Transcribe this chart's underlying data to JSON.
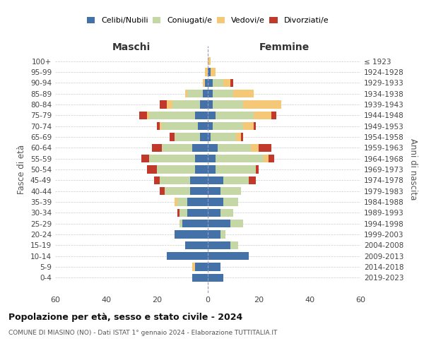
{
  "age_groups": [
    "0-4",
    "5-9",
    "10-14",
    "15-19",
    "20-24",
    "25-29",
    "30-34",
    "35-39",
    "40-44",
    "45-49",
    "50-54",
    "55-59",
    "60-64",
    "65-69",
    "70-74",
    "75-79",
    "80-84",
    "85-89",
    "90-94",
    "95-99",
    "100+"
  ],
  "birth_years": [
    "2019-2023",
    "2014-2018",
    "2009-2013",
    "2004-2008",
    "1999-2003",
    "1994-1998",
    "1989-1993",
    "1984-1988",
    "1979-1983",
    "1974-1978",
    "1969-1973",
    "1964-1968",
    "1959-1963",
    "1954-1958",
    "1949-1953",
    "1944-1948",
    "1939-1943",
    "1934-1938",
    "1929-1933",
    "1924-1928",
    "≤ 1923"
  ],
  "maschi": {
    "celibi": [
      6,
      5,
      16,
      9,
      13,
      10,
      8,
      8,
      7,
      7,
      5,
      5,
      6,
      3,
      4,
      5,
      3,
      2,
      1,
      0,
      0
    ],
    "coniugati": [
      0,
      0,
      0,
      0,
      0,
      1,
      3,
      4,
      10,
      12,
      15,
      18,
      12,
      10,
      14,
      18,
      11,
      6,
      0,
      0,
      0
    ],
    "vedovi": [
      0,
      1,
      0,
      0,
      0,
      0,
      0,
      1,
      0,
      0,
      0,
      0,
      0,
      0,
      1,
      1,
      2,
      1,
      1,
      1,
      0
    ],
    "divorziati": [
      0,
      0,
      0,
      0,
      0,
      0,
      1,
      0,
      2,
      2,
      4,
      3,
      4,
      2,
      1,
      3,
      3,
      0,
      0,
      0,
      0
    ]
  },
  "femmine": {
    "nubili": [
      6,
      5,
      16,
      9,
      5,
      9,
      5,
      6,
      5,
      6,
      3,
      3,
      4,
      1,
      2,
      3,
      2,
      2,
      2,
      1,
      0
    ],
    "coniugate": [
      0,
      0,
      0,
      3,
      2,
      5,
      5,
      6,
      8,
      10,
      16,
      19,
      13,
      10,
      12,
      15,
      12,
      8,
      4,
      0,
      0
    ],
    "vedove": [
      0,
      0,
      0,
      0,
      0,
      0,
      0,
      0,
      0,
      0,
      0,
      2,
      3,
      2,
      4,
      7,
      15,
      8,
      3,
      2,
      1
    ],
    "divorziate": [
      0,
      0,
      0,
      0,
      0,
      0,
      0,
      0,
      0,
      3,
      1,
      2,
      5,
      1,
      1,
      2,
      0,
      0,
      1,
      0,
      0
    ]
  },
  "colors": {
    "celibi": "#4472a8",
    "coniugati": "#c5d7a5",
    "vedovi": "#f5c878",
    "divorziati": "#c0392b"
  },
  "title": "Popolazione per età, sesso e stato civile - 2024",
  "subtitle": "COMUNE DI MIASINO (NO) - Dati ISTAT 1° gennaio 2024 - Elaborazione TUTTITALIA.IT",
  "xlabel_left": "Maschi",
  "xlabel_right": "Femmine",
  "ylabel_left": "Fasce di età",
  "ylabel_right": "Anni di nascita",
  "xlim": 60,
  "xticks": [
    -60,
    -40,
    -20,
    0,
    20,
    40,
    60
  ],
  "xtick_labels": [
    "60",
    "40",
    "20",
    "0",
    "20",
    "40",
    "60"
  ]
}
